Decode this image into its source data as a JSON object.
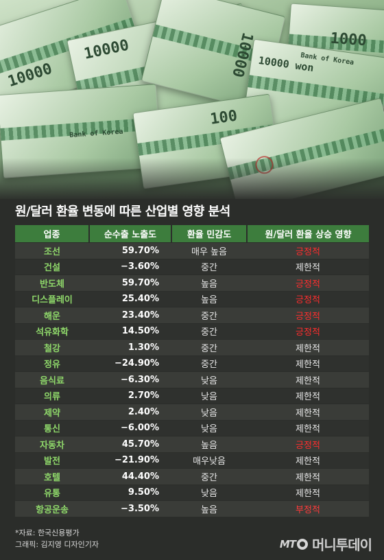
{
  "title": "원/달러 환율 변동에 따른 산업별 영향 분석",
  "hero": {
    "bill_numbers": [
      "10000",
      "1000",
      "100",
      "10000 won",
      "Bank of Korea"
    ]
  },
  "table": {
    "headers": [
      "업종",
      "순수출 노출도",
      "환율 민감도",
      "원/달러 환율 상승 영향"
    ],
    "rows": [
      {
        "industry": "조선",
        "exposure": "59.70%",
        "sensitivity": "매우 높음",
        "effect": "긍정적",
        "tone": "pos"
      },
      {
        "industry": "건설",
        "exposure": "−3.60%",
        "sensitivity": "중간",
        "effect": "제한적",
        "tone": "neutral"
      },
      {
        "industry": "반도체",
        "exposure": "59.70%",
        "sensitivity": "높음",
        "effect": "긍정적",
        "tone": "pos"
      },
      {
        "industry": "디스플레이",
        "exposure": "25.40%",
        "sensitivity": "높음",
        "effect": "긍정적",
        "tone": "pos"
      },
      {
        "industry": "해운",
        "exposure": "23.40%",
        "sensitivity": "중간",
        "effect": "긍정적",
        "tone": "pos"
      },
      {
        "industry": "석유화학",
        "exposure": "14.50%",
        "sensitivity": "중간",
        "effect": "긍정적",
        "tone": "pos"
      },
      {
        "industry": "철강",
        "exposure": "1.30%",
        "sensitivity": "중간",
        "effect": "제한적",
        "tone": "neutral"
      },
      {
        "industry": "정유",
        "exposure": "−24.90%",
        "sensitivity": "중간",
        "effect": "제한적",
        "tone": "neutral"
      },
      {
        "industry": "음식료",
        "exposure": "−6.30%",
        "sensitivity": "낮음",
        "effect": "제한적",
        "tone": "neutral"
      },
      {
        "industry": "의류",
        "exposure": "2.70%",
        "sensitivity": "낮음",
        "effect": "제한적",
        "tone": "neutral"
      },
      {
        "industry": "제약",
        "exposure": "2.40%",
        "sensitivity": "낮음",
        "effect": "제한적",
        "tone": "neutral"
      },
      {
        "industry": "통신",
        "exposure": "−6.00%",
        "sensitivity": "낮음",
        "effect": "제한적",
        "tone": "neutral"
      },
      {
        "industry": "자동차",
        "exposure": "45.70%",
        "sensitivity": "높음",
        "effect": "긍정적",
        "tone": "pos"
      },
      {
        "industry": "발전",
        "exposure": "−21.90%",
        "sensitivity": "매우낮음",
        "effect": "제한적",
        "tone": "neutral"
      },
      {
        "industry": "호텔",
        "exposure": "44.40%",
        "sensitivity": "중간",
        "effect": "제한적",
        "tone": "neutral"
      },
      {
        "industry": "유통",
        "exposure": "9.50%",
        "sensitivity": "낮음",
        "effect": "제한적",
        "tone": "neutral"
      },
      {
        "industry": "항공운송",
        "exposure": "−3.50%",
        "sensitivity": "높음",
        "effect": "부정적",
        "tone": "neg"
      }
    ]
  },
  "footer": {
    "source": "*자료: 한국신용평가",
    "credit": "그래픽: 김지영 디자인기자",
    "logo_mt": "MT",
    "logo_brand": "머니투데이"
  },
  "colors": {
    "header_bg": "#3d7d3d",
    "industry_text": "#8fd86a",
    "positive": "#ff2d2d",
    "background": "#2b2d2a"
  }
}
